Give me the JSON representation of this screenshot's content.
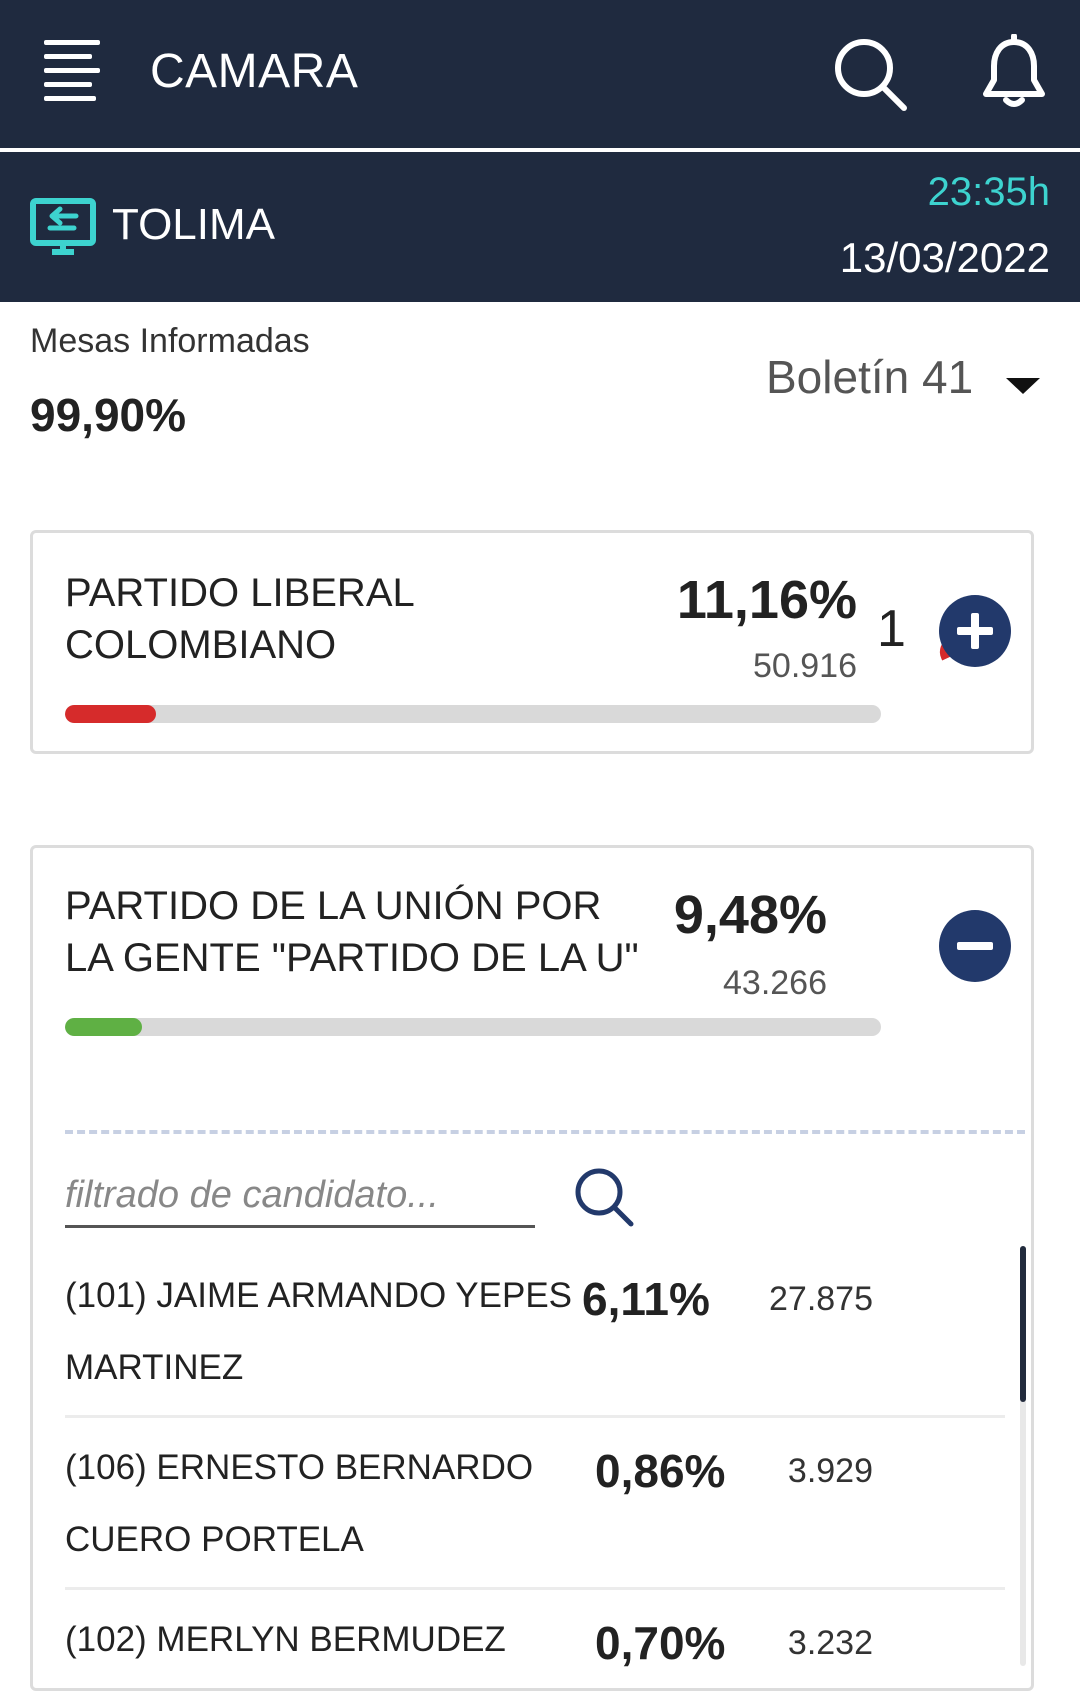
{
  "header": {
    "title": "CAMARA",
    "menu_icon": "hamburger-menu-icon",
    "search_icon": "search-icon",
    "bell_icon": "bell-icon"
  },
  "region": {
    "name": "TOLIMA",
    "icon": "region-switch-icon",
    "time": "23:35h",
    "date": "13/03/2022",
    "accent_color": "#3dd3cf"
  },
  "summary": {
    "mesas_label": "Mesas Informadas",
    "mesas_value": "99,90%",
    "boletin_label": "Boletín 41"
  },
  "parties": [
    {
      "name_line1": "PARTIDO LIBERAL",
      "name_line2": "COLOMBIANO",
      "percent": "11,16%",
      "votes": "50.916",
      "seats": "1",
      "bar_fraction": 0.1116,
      "bar_color": "#d62b2b",
      "expanded": false
    },
    {
      "name_line1": "PARTIDO DE LA UNIÓN POR",
      "name_line2": "LA GENTE \"PARTIDO DE LA U\"",
      "percent": "9,48%",
      "votes": "43.266",
      "bar_fraction": 0.0948,
      "bar_color": "#5fb044",
      "expanded": true
    }
  ],
  "candidate_filter": {
    "placeholder": "filtrado de candidato..."
  },
  "candidates": [
    {
      "line1": "(101) JAIME ARMANDO YEPES",
      "line2": "MARTINEZ",
      "percent": "6,11%",
      "votes": "27.875"
    },
    {
      "line1": "(106) ERNESTO BERNARDO",
      "line2": "CUERO PORTELA",
      "percent": "0,86%",
      "votes": "3.929"
    },
    {
      "line1": "(102) MERLYN BERMUDEZ",
      "line2": "",
      "percent": "0,70%",
      "votes": "3.232"
    }
  ],
  "colors": {
    "header_bg": "#1f2a3f",
    "button_bg": "#22396b"
  }
}
